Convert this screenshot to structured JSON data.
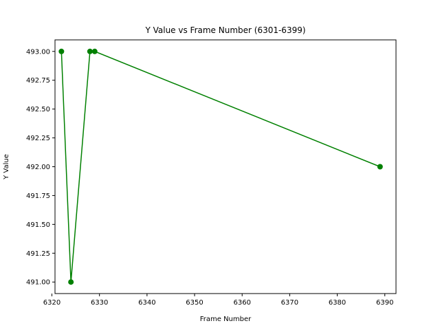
{
  "chart_data": {
    "type": "line",
    "title": "Y Value vs Frame Number (6301-6399)",
    "xlabel": "Frame Number",
    "ylabel": "Y Value",
    "xlim": [
      6320.65,
      6392.35
    ],
    "ylim": [
      490.9,
      493.1
    ],
    "x_ticks": [
      6320,
      6330,
      6340,
      6350,
      6360,
      6370,
      6380,
      6390
    ],
    "y_ticks": [
      491.0,
      491.25,
      491.5,
      491.75,
      492.0,
      492.25,
      492.5,
      492.75,
      493.0
    ],
    "y_tick_labels": [
      "491.00",
      "491.25",
      "491.50",
      "491.75",
      "492.00",
      "492.25",
      "492.50",
      "492.75",
      "493.00"
    ],
    "series": [
      {
        "x": [
          6322,
          6324,
          6328,
          6329,
          6389
        ],
        "y": [
          493.0,
          491.0,
          493.0,
          493.0,
          492.0
        ],
        "color": "#008000",
        "marker": "circle"
      }
    ],
    "grid": false,
    "legend": "none"
  }
}
